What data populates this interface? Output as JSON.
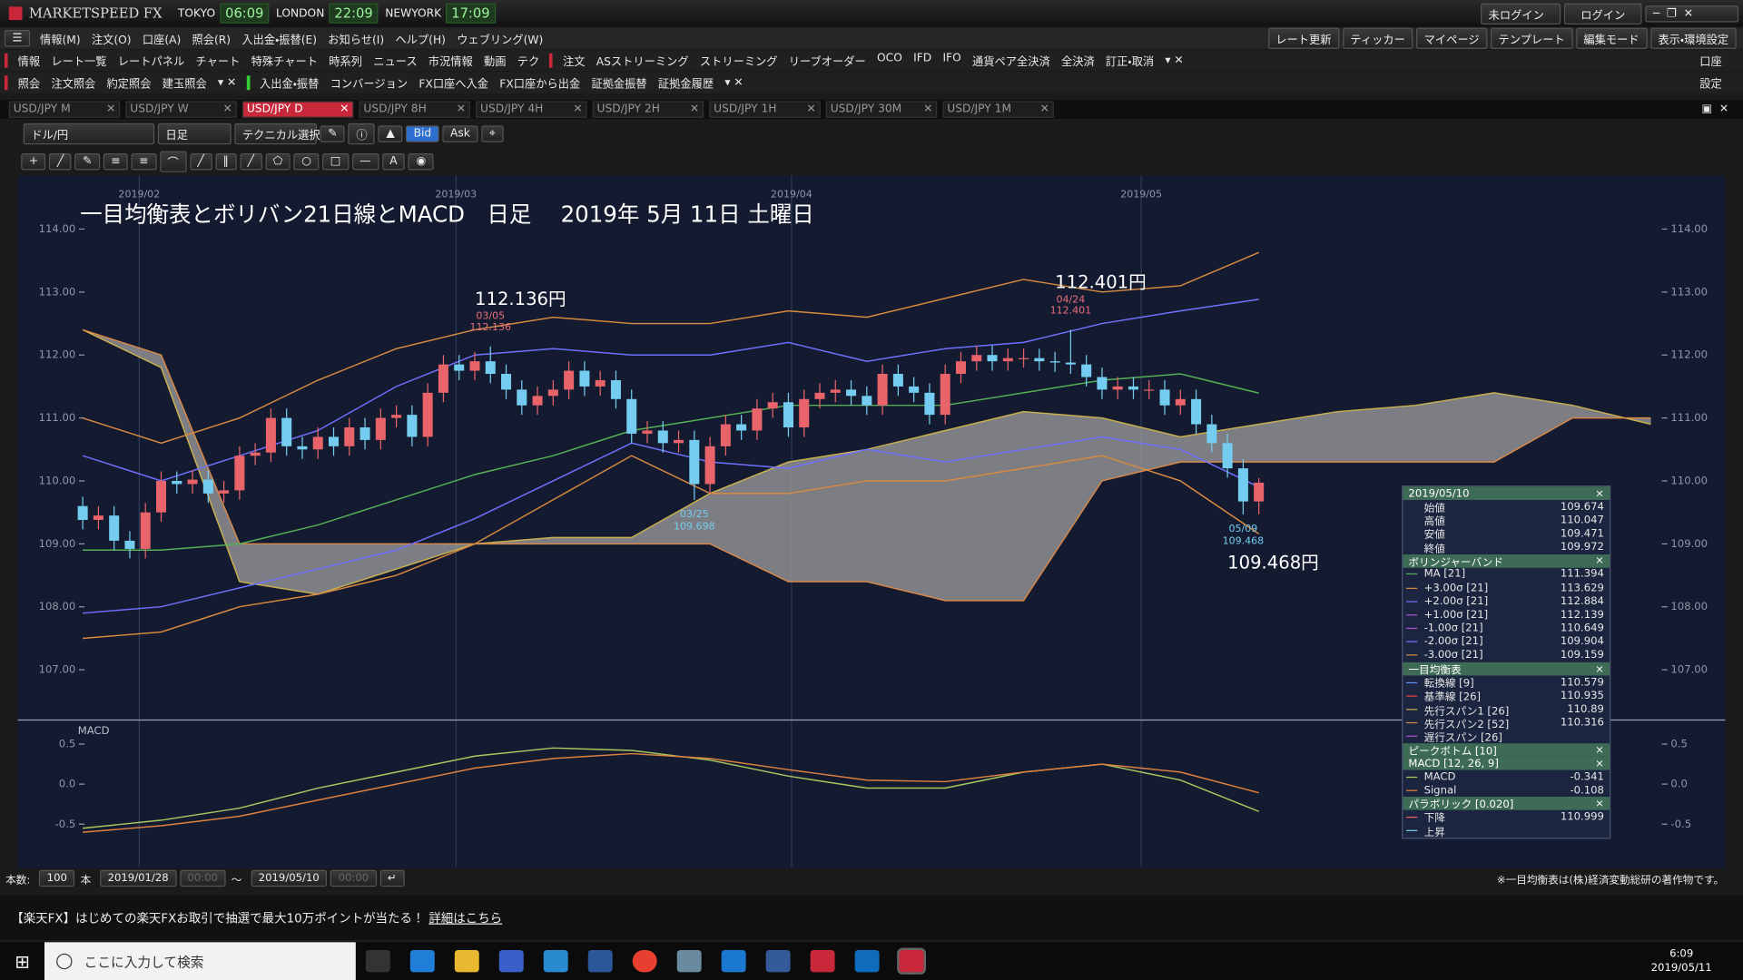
{
  "titlebar": {
    "logo": "MARKETSPEED FX",
    "clocks": [
      {
        "city": "TOKYO",
        "time": "06:09"
      },
      {
        "city": "LONDON",
        "time": "22:09"
      },
      {
        "city": "NEWYORK",
        "time": "17:09"
      }
    ],
    "login_status": "未ログイン",
    "login": "ログイン"
  },
  "menu": {
    "items": [
      "情報(M)",
      "注文(O)",
      "口座(A)",
      "照会(R)",
      "入出金・振替(E)",
      "お知らせ(I)",
      "ヘルプ(H)",
      "ウェブリング(W)"
    ],
    "right": [
      "レート更新",
      "ティッカー",
      "マイページ",
      "テンプレート",
      "編集モード",
      "表示・環境設定"
    ]
  },
  "toolbar1": {
    "a": [
      "情報",
      "レート一覧",
      "レートパネル",
      "チャート",
      "特殊チャート",
      "時系列",
      "ニュース",
      "市況情報",
      "動画",
      "テク"
    ],
    "b": [
      "注文",
      "ASストリーミング",
      "ストリーミング",
      "リーブオーダー",
      "OCO",
      "IFD",
      "IFO",
      "通貨ペア全決済",
      "全決済",
      "訂正・取消"
    ],
    "right": "口座"
  },
  "toolbar2": {
    "a": [
      "照会",
      "注文照会",
      "約定照会",
      "建玉照会"
    ],
    "b": [
      "入出金・振替",
      "コンバージョン",
      "FX口座へ入金",
      "FX口座から出金",
      "証拠金振替",
      "証拠金履歴"
    ],
    "right": "設定"
  },
  "tabs": [
    "USD/JPY M",
    "USD/JPY W",
    "USD/JPY D",
    "USD/JPY 8H",
    "USD/JPY 4H",
    "USD/JPY 2H",
    "USD/JPY 1H",
    "USD/JPY 30M",
    "USD/JPY 1M"
  ],
  "chart_toolbar": {
    "pair": "ドル/円",
    "period": "日足",
    "technical": "テクニカル選択",
    "bid": "Bid",
    "ask": "Ask"
  },
  "chart_data": [
    {
      "type": "candlestick",
      "title": "一目均衡表とボリバン21日線とMACD　日足　 2019年 5月 11日 土曜日",
      "xlim": [
        -4,
        100.7
      ],
      "xticks": [
        {
          "value": 3.6,
          "label": "2019/02"
        },
        {
          "value": 23.8,
          "label": "2019/03"
        },
        {
          "value": 45.2,
          "label": "2019/04"
        },
        {
          "value": 67.5,
          "label": "2019/05"
        }
      ],
      "ylim": [
        106.22,
        114.85
      ],
      "yticks": [
        {
          "value": 114,
          "label": "114.00"
        },
        {
          "value": 113,
          "label": "113.00"
        },
        {
          "value": 112,
          "label": "112.00"
        },
        {
          "value": 111,
          "label": "111.00"
        },
        {
          "value": 110,
          "label": "110.00"
        },
        {
          "value": 109,
          "label": "109.00"
        },
        {
          "value": 108,
          "label": "108.00"
        },
        {
          "value": 107,
          "label": "107.00"
        }
      ],
      "grid": true,
      "up_color": "#e8646a",
      "down_color": "#74cdf0",
      "open": [
        109.6,
        109.38,
        109.45,
        109.05,
        108.92,
        109.5,
        110.0,
        109.95,
        110.02,
        109.8,
        109.85,
        110.4,
        110.45,
        111.0,
        110.55,
        110.5,
        110.7,
        110.55,
        110.85,
        110.65,
        111.0,
        111.05,
        110.7,
        111.4,
        111.85,
        111.75,
        111.9,
        111.7,
        111.45,
        111.2,
        111.35,
        111.45,
        111.75,
        111.5,
        111.6,
        111.3,
        110.75,
        110.8,
        110.6,
        110.65,
        109.95,
        110.55,
        110.9,
        110.8,
        111.15,
        111.25,
        110.85,
        111.3,
        111.4,
        111.45,
        111.35,
        111.2,
        111.7,
        111.5,
        111.4,
        111.05,
        111.7,
        111.9,
        112.0,
        111.9,
        111.95,
        111.95,
        111.9,
        111.88,
        111.85,
        111.65,
        111.45,
        111.5,
        111.45,
        111.45,
        111.2,
        111.3,
        110.9,
        110.6,
        110.2,
        109.674
      ],
      "high": [
        109.75,
        109.6,
        109.6,
        109.2,
        109.65,
        110.15,
        110.15,
        110.17,
        110.17,
        110.0,
        110.55,
        110.6,
        111.15,
        111.15,
        110.7,
        110.85,
        110.85,
        111.0,
        111.0,
        111.15,
        111.2,
        111.2,
        111.55,
        112.0,
        112.0,
        112.05,
        112.136,
        111.85,
        111.6,
        111.5,
        111.6,
        111.9,
        111.9,
        111.75,
        111.75,
        111.45,
        110.95,
        110.95,
        110.8,
        110.8,
        110.7,
        111.05,
        111.05,
        111.3,
        111.4,
        111.4,
        111.45,
        111.55,
        111.6,
        111.6,
        111.5,
        111.85,
        111.85,
        111.65,
        111.55,
        111.85,
        112.05,
        112.15,
        112.15,
        112.1,
        112.1,
        112.1,
        112.05,
        112.401,
        112.0,
        111.8,
        111.65,
        111.65,
        111.6,
        111.6,
        111.45,
        111.45,
        111.05,
        110.75,
        110.35,
        110.047
      ],
      "low": [
        109.23,
        109.23,
        108.9,
        108.77,
        108.77,
        109.35,
        109.8,
        109.8,
        109.65,
        109.65,
        109.7,
        110.25,
        110.3,
        110.4,
        110.35,
        110.35,
        110.4,
        110.4,
        110.5,
        110.5,
        110.85,
        110.55,
        110.55,
        111.25,
        111.6,
        111.6,
        111.55,
        111.3,
        111.05,
        111.05,
        111.2,
        111.3,
        111.35,
        111.35,
        111.15,
        110.6,
        110.6,
        110.45,
        110.45,
        109.698,
        109.8,
        110.4,
        110.65,
        110.65,
        111.0,
        110.7,
        110.7,
        111.15,
        111.25,
        111.2,
        111.05,
        111.05,
        111.35,
        111.25,
        110.9,
        110.9,
        111.55,
        111.75,
        111.75,
        111.75,
        111.8,
        111.75,
        111.73,
        111.7,
        111.5,
        111.3,
        111.3,
        111.3,
        111.3,
        111.05,
        111.05,
        110.75,
        110.45,
        110.05,
        109.468,
        109.471
      ],
      "close": [
        109.38,
        109.45,
        109.05,
        108.92,
        109.5,
        110.0,
        109.95,
        110.02,
        109.8,
        109.85,
        110.4,
        110.45,
        111.0,
        110.55,
        110.5,
        110.7,
        110.55,
        110.85,
        110.65,
        111.0,
        111.05,
        110.7,
        111.4,
        111.85,
        111.75,
        111.9,
        111.7,
        111.45,
        111.2,
        111.35,
        111.45,
        111.75,
        111.5,
        111.6,
        111.3,
        110.75,
        110.8,
        110.6,
        110.65,
        109.95,
        110.55,
        110.9,
        110.8,
        111.15,
        111.25,
        110.85,
        111.3,
        111.4,
        111.45,
        111.35,
        111.2,
        111.7,
        111.5,
        111.4,
        111.05,
        111.7,
        111.9,
        112.0,
        111.9,
        111.95,
        111.95,
        111.9,
        111.88,
        111.85,
        111.65,
        111.45,
        111.5,
        111.45,
        111.45,
        111.2,
        111.3,
        110.9,
        110.6,
        110.2,
        109.674,
        109.972
      ],
      "cloud": {
        "color": "#a0a0a0",
        "x": [
          0,
          5,
          10,
          15,
          20,
          25,
          30,
          35,
          40,
          45,
          50,
          55,
          60,
          65,
          70,
          75,
          80,
          85,
          90,
          95,
          100
        ],
        "span1": [
          112.4,
          111.8,
          108.4,
          108.2,
          108.6,
          109.0,
          109.1,
          109.1,
          109.8,
          110.3,
          110.5,
          110.8,
          111.1,
          111.0,
          110.7,
          110.9,
          111.1,
          111.2,
          111.4,
          111.2,
          110.9
        ],
        "span1_color": "#c8b050",
        "span2": [
          112.4,
          112.0,
          109.0,
          109.0,
          109.0,
          109.0,
          109.0,
          109.0,
          109.0,
          108.4,
          108.4,
          108.1,
          108.1,
          110.0,
          110.3,
          110.3,
          110.3,
          110.3,
          110.3,
          111.0,
          111.0
        ],
        "span2_color": "#d88848"
      },
      "series": [
        {
          "color": "#d88a40",
          "x": [
            0,
            5,
            10,
            15,
            20,
            25,
            30,
            35,
            40,
            45,
            50,
            55,
            60,
            65,
            70,
            75
          ],
          "values": [
            111.0,
            110.6,
            111.0,
            111.6,
            112.1,
            112.4,
            112.6,
            112.5,
            112.5,
            112.7,
            112.6,
            112.9,
            113.2,
            113.0,
            113.1,
            113.629
          ]
        },
        {
          "color": "#7070ff",
          "x": [
            0,
            5,
            10,
            15,
            20,
            25,
            30,
            35,
            40,
            45,
            50,
            55,
            60,
            65,
            70,
            75
          ],
          "values": [
            110.4,
            110.0,
            110.4,
            110.8,
            111.5,
            112.0,
            112.1,
            112.0,
            112.0,
            112.2,
            111.9,
            112.1,
            112.2,
            112.5,
            112.7,
            112.884
          ]
        },
        {
          "color": "#55b055",
          "x": [
            0,
            5,
            10,
            15,
            20,
            25,
            30,
            35,
            40,
            45,
            50,
            55,
            60,
            65,
            70,
            75
          ],
          "values": [
            108.9,
            108.9,
            109.0,
            109.3,
            109.7,
            110.1,
            110.4,
            110.8,
            111.0,
            111.2,
            111.2,
            111.2,
            111.4,
            111.6,
            111.7,
            111.394
          ]
        },
        {
          "color": "#7070ff",
          "x": [
            0,
            5,
            10,
            15,
            20,
            25,
            30,
            35,
            40,
            45,
            50,
            55,
            60,
            65,
            70,
            75
          ],
          "values": [
            107.9,
            108.0,
            108.3,
            108.6,
            108.9,
            109.4,
            110.0,
            110.6,
            110.3,
            110.2,
            110.5,
            110.3,
            110.5,
            110.7,
            110.5,
            109.904
          ]
        },
        {
          "color": "#d88a40",
          "x": [
            0,
            5,
            10,
            15,
            20,
            25,
            30,
            35,
            40,
            45,
            50,
            55,
            60,
            65,
            70,
            75
          ],
          "values": [
            107.5,
            107.6,
            108.0,
            108.2,
            108.5,
            109.0,
            109.7,
            110.4,
            109.8,
            109.8,
            110.0,
            110.0,
            110.2,
            110.4,
            110.0,
            109.159
          ]
        }
      ],
      "peaks": [
        {
          "kind": "high",
          "date": "03/05",
          "x": 26,
          "value": 112.136,
          "label": "112.136円"
        },
        {
          "kind": "high",
          "date": "04/24",
          "x": 63,
          "value": 112.401,
          "label": "112.401円"
        },
        {
          "kind": "low",
          "date": "03/25",
          "x": 39,
          "value": 109.698
        },
        {
          "kind": "low",
          "date": "05/09",
          "x": 74,
          "value": 109.468,
          "label": "109.468円"
        }
      ]
    },
    {
      "type": "line",
      "title": "MACD",
      "xlim": [
        -4,
        100.7
      ],
      "xticks": [
        {
          "value": 3.6,
          "label": "2019/02"
        },
        {
          "value": 23.8,
          "label": "2019/03"
        },
        {
          "value": 45.2,
          "label": "2019/04"
        },
        {
          "value": 67.5,
          "label": "2019/05"
        }
      ],
      "ylim": [
        -1.03,
        0.8
      ],
      "yticks": [
        0.5,
        {
          "value": 0,
          "label": "0.0"
        },
        -0.5
      ],
      "grid": true,
      "series": [
        {
          "color": "#a8c860",
          "x": [
            0,
            5,
            10,
            15,
            20,
            25,
            30,
            35,
            40,
            45,
            50,
            55,
            60,
            65,
            70,
            75
          ],
          "values": [
            -0.55,
            -0.45,
            -0.3,
            -0.05,
            0.15,
            0.35,
            0.45,
            0.42,
            0.3,
            0.1,
            -0.05,
            -0.05,
            0.15,
            0.25,
            0.05,
            -0.341
          ]
        },
        {
          "color": "#e08040",
          "x": [
            0,
            5,
            10,
            15,
            20,
            25,
            30,
            35,
            40,
            45,
            50,
            55,
            60,
            65,
            70,
            75
          ],
          "values": [
            -0.6,
            -0.52,
            -0.4,
            -0.2,
            0.0,
            0.2,
            0.32,
            0.38,
            0.32,
            0.18,
            0.05,
            0.03,
            0.15,
            0.25,
            0.15,
            -0.108
          ]
        }
      ]
    }
  ],
  "info_panel": {
    "date": "2019/05/10",
    "sections": [
      {
        "rows": [
          {
            "name": "始値",
            "value": 109.674
          },
          {
            "name": "高値",
            "value": 110.047
          },
          {
            "name": "安値",
            "value": 109.471
          },
          {
            "name": "終値",
            "value": 109.972
          }
        ]
      },
      {
        "title": "ボリンジャーバンド",
        "rows": [
          {
            "name": "MA [21]",
            "value": 111.394,
            "color": "#55b055"
          },
          {
            "name": "+3.00σ [21]",
            "value": 113.629,
            "color": "#d88a40"
          },
          {
            "name": "+2.00σ [21]",
            "value": 112.884,
            "color": "#7070ff"
          },
          {
            "name": "+1.00σ [21]",
            "value": 112.139,
            "color": "#b050d0"
          },
          {
            "name": "-1.00σ [21]",
            "value": 110.649,
            "color": "#b050d0"
          },
          {
            "name": "-2.00σ [21]",
            "value": 109.904,
            "color": "#7070ff"
          },
          {
            "name": "-3.00σ [21]",
            "value": 109.159,
            "color": "#d88a40"
          }
        ]
      },
      {
        "title": "一目均衡表",
        "rows": [
          {
            "name": "転換線 [9]",
            "value": 110.579,
            "color": "#6090ff"
          },
          {
            "name": "基準線 [26]",
            "value": 110.935,
            "color": "#e04040"
          },
          {
            "name": "先行スパン1 [26]",
            "value": 110.89,
            "color": "#c8b050"
          },
          {
            "name": "先行スパン2 [52]",
            "value": 110.316,
            "color": "#d88848"
          },
          {
            "name": "遅行スパン [26]",
            "color": "#b050d0"
          }
        ]
      },
      {
        "title": "ピークボトム [10]",
        "rows": []
      },
      {
        "title": "MACD [12, 26, 9]",
        "rows": [
          {
            "name": "MACD",
            "value": -0.341,
            "color": "#a8c860"
          },
          {
            "name": "Signal",
            "value": -0.108,
            "color": "#e08040"
          }
        ]
      },
      {
        "title": "パラボリック [0.020]",
        "rows": [
          {
            "name": "下降",
            "value": 110.999,
            "color": "#e8646a"
          },
          {
            "name": "上昇",
            "color": "#74cdf0"
          }
        ]
      }
    ]
  },
  "footer": {
    "count_label": "本数:",
    "count": 100,
    "count_unit": "本",
    "from_date": "2019/01/28",
    "from_time": "00:00",
    "sep": "～",
    "to_date": "2019/05/10",
    "to_time": "00:00",
    "notice": "※一目均衡表は(株)経済変動総研の著作物です。"
  },
  "banner": {
    "text": "【楽天FX】はじめての楽天FXお取引で抽選で最大10万ポイントが当たる！",
    "link": "詳細はこちら"
  },
  "taskbar": {
    "search": "ここに入力して検索",
    "time": "6:09",
    "date": "2019/05/11"
  }
}
